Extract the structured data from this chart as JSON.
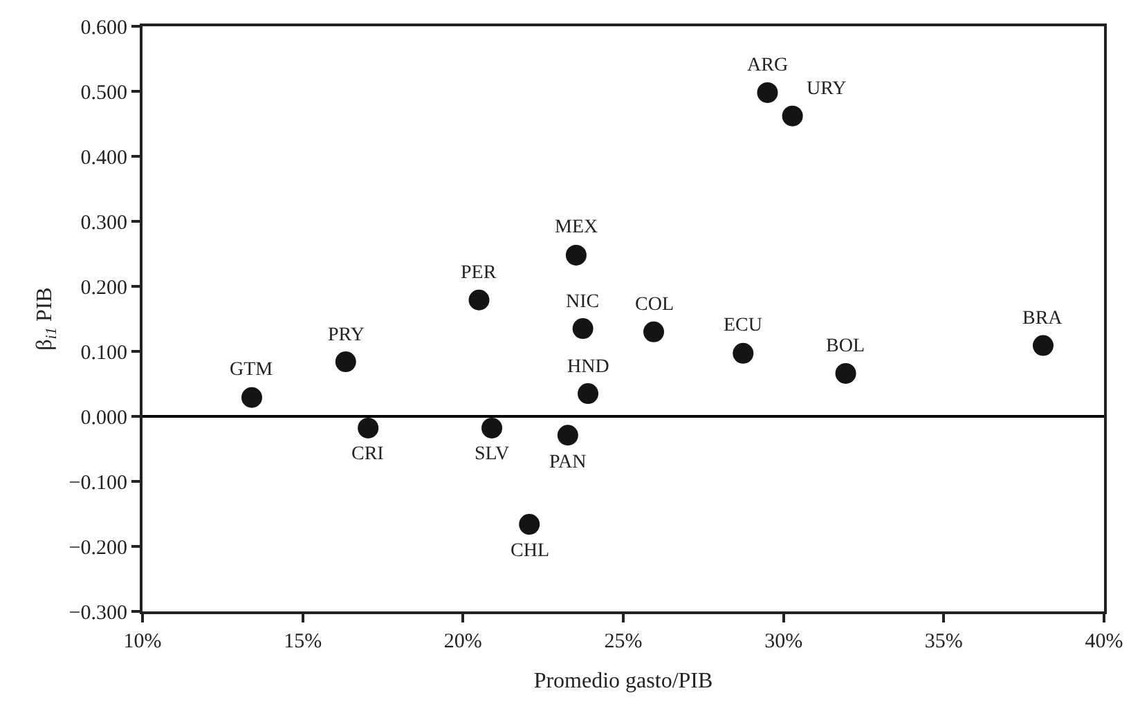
{
  "chart_data": {
    "type": "scatter",
    "xlabel": "Promedio gasto/PIB",
    "ylabel": "β$_{i1}$ PIB",
    "series": [
      {
        "color": "#141414",
        "x": [
          13.41,
          16.34,
          17.04,
          20.5,
          20.9,
          23.27,
          22.07,
          23.53,
          23.74,
          23.9,
          29.5,
          30.28,
          25.95,
          28.74,
          31.94,
          38.1
        ],
        "values": [
          0.029,
          0.084,
          -0.018,
          0.179,
          -0.018,
          -0.029,
          -0.166,
          0.248,
          0.135,
          0.035,
          0.498,
          0.462,
          0.13,
          0.097,
          0.066,
          0.109
        ]
      }
    ],
    "annotations": [
      {
        "text": "GTM",
        "x": 13.41,
        "y": 0.029
      },
      {
        "text": "PRY",
        "x": 16.34,
        "y": 0.084
      },
      {
        "text": "CRI",
        "x": 17.04,
        "y": -0.018
      },
      {
        "text": "PER",
        "x": 20.5,
        "y": 0.179
      },
      {
        "text": "SLV",
        "x": 20.9,
        "y": -0.018
      },
      {
        "text": "PAN",
        "x": 23.27,
        "y": -0.029
      },
      {
        "text": "CHL",
        "x": 22.07,
        "y": -0.166
      },
      {
        "text": "MEX",
        "x": 23.53,
        "y": 0.248
      },
      {
        "text": "NIC",
        "x": 23.74,
        "y": 0.135
      },
      {
        "text": "HND",
        "x": 23.9,
        "y": 0.035
      },
      {
        "text": "ARG",
        "x": 29.5,
        "y": 0.498
      },
      {
        "text": "URY",
        "x": 30.28,
        "y": 0.462
      },
      {
        "text": "COL",
        "x": 25.95,
        "y": 0.13
      },
      {
        "text": "ECU",
        "x": 28.74,
        "y": 0.097
      },
      {
        "text": "BOL",
        "x": 31.94,
        "y": 0.066
      },
      {
        "text": "BRA",
        "x": 38.1,
        "y": 0.109
      }
    ],
    "xlim": [
      10,
      40
    ],
    "xticks": [
      {
        "value": 10,
        "label": "10%"
      },
      {
        "value": 15,
        "label": "15%"
      },
      {
        "value": 20,
        "label": "20%"
      },
      {
        "value": 25,
        "label": "25%"
      },
      {
        "value": 30,
        "label": "30%"
      },
      {
        "value": 35,
        "label": "35%"
      },
      {
        "value": 40,
        "label": "40%"
      }
    ],
    "ylim": [
      -0.3,
      0.6
    ],
    "yticks": [
      {
        "value": -0.3,
        "label": "−0.300"
      },
      {
        "value": -0.2,
        "label": "−0.200"
      },
      {
        "value": -0.1,
        "label": "−0.100"
      },
      {
        "value": 0,
        "label": "0.000"
      },
      {
        "value": 0.1,
        "label": "0.100"
      },
      {
        "value": 0.2,
        "label": "0.200"
      },
      {
        "value": 0.3,
        "label": "0.300"
      },
      {
        "value": 0.4,
        "label": "0.400"
      },
      {
        "value": 0.5,
        "label": "0.500"
      },
      {
        "value": 0.6,
        "label": "0.600"
      }
    ],
    "ref_lines": [
      {
        "axis": "y",
        "value": 0,
        "color": "#000000"
      }
    ],
    "marker": "circle"
  }
}
